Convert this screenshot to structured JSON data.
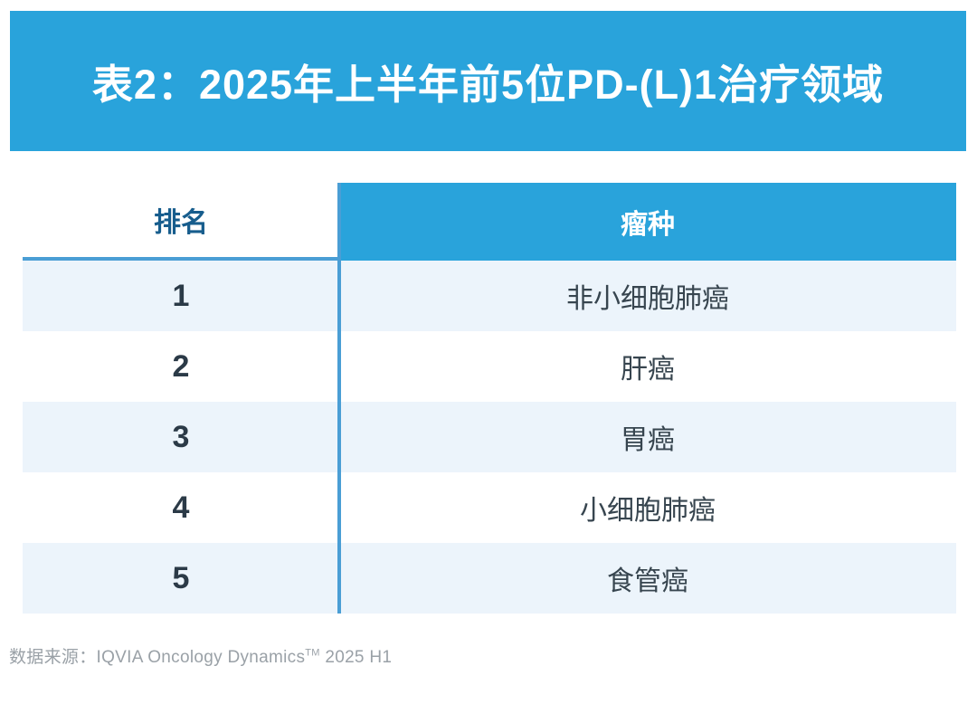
{
  "page": {
    "title": "表2：2025年上半年前5位PD-(L)1治疗领域"
  },
  "table": {
    "columns": [
      {
        "key": "rank",
        "label": "排名"
      },
      {
        "key": "tumor",
        "label": "瘤种"
      }
    ],
    "rows": [
      {
        "rank": "1",
        "tumor": "非小细胞肺癌"
      },
      {
        "rank": "2",
        "tumor": "肝癌"
      },
      {
        "rank": "3",
        "tumor": "胃癌"
      },
      {
        "rank": "4",
        "tumor": "小细胞肺癌"
      },
      {
        "rank": "5",
        "tumor": "食管癌"
      }
    ]
  },
  "footer": {
    "source_prefix": "数据来源：IQVIA Oncology Dynamics",
    "source_trademark": "TM",
    "source_suffix": " 2025 H1"
  },
  "colors": {
    "banner_blue": "#29a3db",
    "header_text_blue": "#175d8d",
    "divider_blue": "#4a9ed5",
    "row_alt_blue": "#ecf4fb",
    "body_text_dark": "#2b3a47",
    "source_gray": "#9aa1a7"
  },
  "chart_data": {
    "type": "table",
    "title": "表2：2025年上半年前5位PD-(L)1治疗领域",
    "columns": [
      "排名",
      "瘤种"
    ],
    "rows": [
      [
        "1",
        "非小细胞肺癌"
      ],
      [
        "2",
        "肝癌"
      ],
      [
        "3",
        "胃癌"
      ],
      [
        "4",
        "小细胞肺癌"
      ],
      [
        "5",
        "食管癌"
      ]
    ],
    "source": "数据来源：IQVIA Oncology Dynamics™ 2025 H1"
  }
}
